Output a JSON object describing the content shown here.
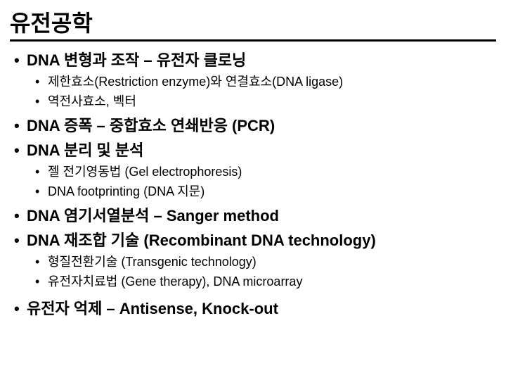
{
  "title": "유전공학",
  "items": [
    {
      "text": "DNA 변형과 조작 – 유전자 클로닝",
      "sub": [
        "제한효소(Restriction enzyme)와 연결효소(DNA ligase)",
        "역전사효소, 벡터"
      ]
    },
    {
      "text": "DNA 증폭 – 중합효소 연쇄반응 (PCR)",
      "sub": []
    },
    {
      "text": "DNA 분리 및 분석",
      "sub": [
        "젤 전기영동법 (Gel electrophoresis)",
        "DNA footprinting (DNA 지문)"
      ]
    },
    {
      "text": "DNA 염기서열분석 – Sanger method",
      "sub": []
    },
    {
      "text": "DNA 재조합 기술 (Recombinant DNA technology)",
      "sub": [
        "형질전환기술 (Transgenic technology)",
        "유전자치료법 (Gene therapy), DNA microarray"
      ]
    },
    {
      "text": "유전자 억제 – Antisense, Knock-out",
      "sub": [],
      "gapBefore": true
    }
  ],
  "style": {
    "title_fontsize": 32,
    "lvl1_fontsize": 22,
    "lvl2_fontsize": 18,
    "text_color": "#000000",
    "background_color": "#ffffff",
    "underline_color": "#000000",
    "underline_width": 3,
    "bullet_char": "•"
  }
}
